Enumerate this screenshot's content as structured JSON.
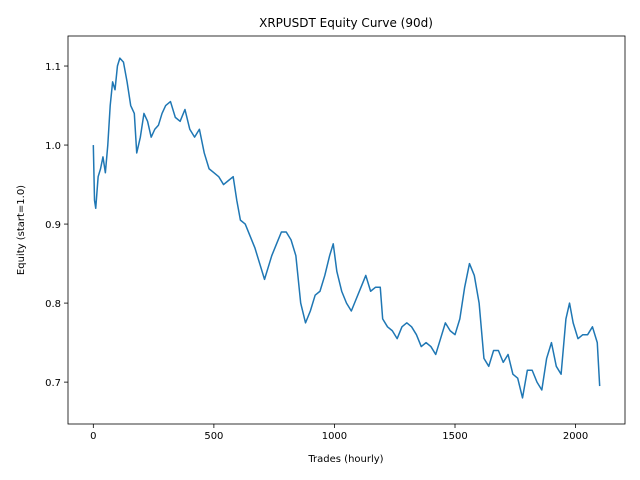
{
  "chart_data": {
    "type": "line",
    "title": "XRPUSDT Equity Curve (90d)",
    "xlabel": "Trades (hourly)",
    "ylabel": "Equity (start=1.0)",
    "color": "#1f77b4",
    "x": [
      0,
      5,
      10,
      20,
      30,
      40,
      50,
      60,
      70,
      80,
      90,
      100,
      110,
      125,
      140,
      155,
      170,
      180,
      195,
      210,
      225,
      240,
      255,
      270,
      285,
      300,
      320,
      340,
      360,
      380,
      400,
      420,
      440,
      460,
      480,
      500,
      520,
      540,
      560,
      580,
      595,
      610,
      630,
      650,
      670,
      690,
      710,
      725,
      740,
      760,
      780,
      800,
      820,
      840,
      860,
      880,
      900,
      920,
      940,
      960,
      980,
      995,
      1010,
      1030,
      1050,
      1070,
      1090,
      1110,
      1130,
      1150,
      1170,
      1190,
      1200,
      1220,
      1240,
      1260,
      1280,
      1300,
      1320,
      1340,
      1360,
      1380,
      1400,
      1420,
      1440,
      1460,
      1480,
      1500,
      1520,
      1540,
      1560,
      1580,
      1600,
      1620,
      1640,
      1660,
      1680,
      1700,
      1720,
      1740,
      1760,
      1780,
      1800,
      1820,
      1840,
      1860,
      1880,
      1900,
      1920,
      1940,
      1960,
      1975,
      1990,
      2010,
      2030,
      2050,
      2070,
      2090,
      2100
    ],
    "values": [
      1.0,
      0.93,
      0.92,
      0.96,
      0.97,
      0.985,
      0.965,
      1.0,
      1.05,
      1.08,
      1.07,
      1.1,
      1.11,
      1.105,
      1.08,
      1.05,
      1.04,
      0.99,
      1.01,
      1.04,
      1.03,
      1.01,
      1.02,
      1.025,
      1.04,
      1.05,
      1.055,
      1.035,
      1.03,
      1.045,
      1.02,
      1.01,
      1.02,
      0.99,
      0.97,
      0.965,
      0.96,
      0.95,
      0.955,
      0.96,
      0.93,
      0.905,
      0.9,
      0.885,
      0.87,
      0.85,
      0.83,
      0.845,
      0.86,
      0.875,
      0.89,
      0.89,
      0.88,
      0.86,
      0.8,
      0.775,
      0.79,
      0.81,
      0.815,
      0.835,
      0.86,
      0.875,
      0.84,
      0.815,
      0.8,
      0.79,
      0.805,
      0.82,
      0.835,
      0.815,
      0.82,
      0.82,
      0.78,
      0.77,
      0.765,
      0.755,
      0.77,
      0.775,
      0.77,
      0.76,
      0.745,
      0.75,
      0.745,
      0.735,
      0.755,
      0.775,
      0.765,
      0.76,
      0.78,
      0.82,
      0.85,
      0.835,
      0.8,
      0.73,
      0.72,
      0.74,
      0.74,
      0.725,
      0.735,
      0.71,
      0.705,
      0.68,
      0.715,
      0.715,
      0.7,
      0.69,
      0.73,
      0.75,
      0.72,
      0.71,
      0.78,
      0.8,
      0.775,
      0.755,
      0.76,
      0.76,
      0.77,
      0.75,
      0.695
    ],
    "xlim": [
      -105,
      2205
    ],
    "xticks": [
      0,
      500,
      1000,
      1500,
      2000
    ],
    "ylim": [
      0.647,
      1.138
    ],
    "yticks": [
      0.7,
      0.8,
      0.9,
      {
        "value": 1,
        "label": "1.0"
      },
      1.1
    ]
  }
}
